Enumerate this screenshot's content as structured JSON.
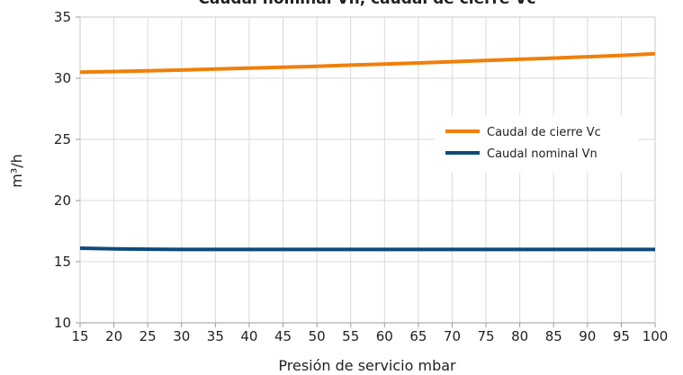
{
  "chart_data": {
    "type": "line",
    "title": "Caudal nominal Vn, caudal de cierre Vc",
    "xlabel": "Presión de servicio mbar",
    "ylabel": "m³/h",
    "xlim": [
      15,
      100
    ],
    "ylim": [
      10,
      35
    ],
    "x_ticks": [
      15,
      20,
      25,
      30,
      35,
      40,
      45,
      50,
      55,
      60,
      65,
      70,
      75,
      80,
      85,
      90,
      95,
      100
    ],
    "y_ticks": [
      10,
      15,
      20,
      25,
      30,
      35
    ],
    "grid": true,
    "legend_position": "right",
    "series": [
      {
        "name": "Caudal de cierre Vc",
        "color": "#F07F09",
        "x": [
          15,
          20,
          25,
          30,
          35,
          40,
          45,
          50,
          55,
          60,
          65,
          70,
          75,
          80,
          85,
          90,
          95,
          100
        ],
        "values": [
          30.5,
          30.55,
          30.6,
          30.67,
          30.75,
          30.82,
          30.9,
          30.98,
          31.07,
          31.16,
          31.25,
          31.35,
          31.45,
          31.55,
          31.65,
          31.76,
          31.87,
          32.0
        ]
      },
      {
        "name": "Caudal nominal Vn",
        "color": "#0E4A7B",
        "x": [
          15,
          20,
          25,
          30,
          35,
          40,
          45,
          50,
          55,
          60,
          65,
          70,
          75,
          80,
          85,
          90,
          95,
          100
        ],
        "values": [
          16.1,
          16.05,
          16.02,
          16.0,
          16.0,
          16.0,
          16.0,
          16.0,
          16.0,
          16.0,
          16.0,
          16.0,
          16.0,
          16.0,
          16.0,
          16.0,
          16.0,
          16.0
        ]
      }
    ]
  }
}
